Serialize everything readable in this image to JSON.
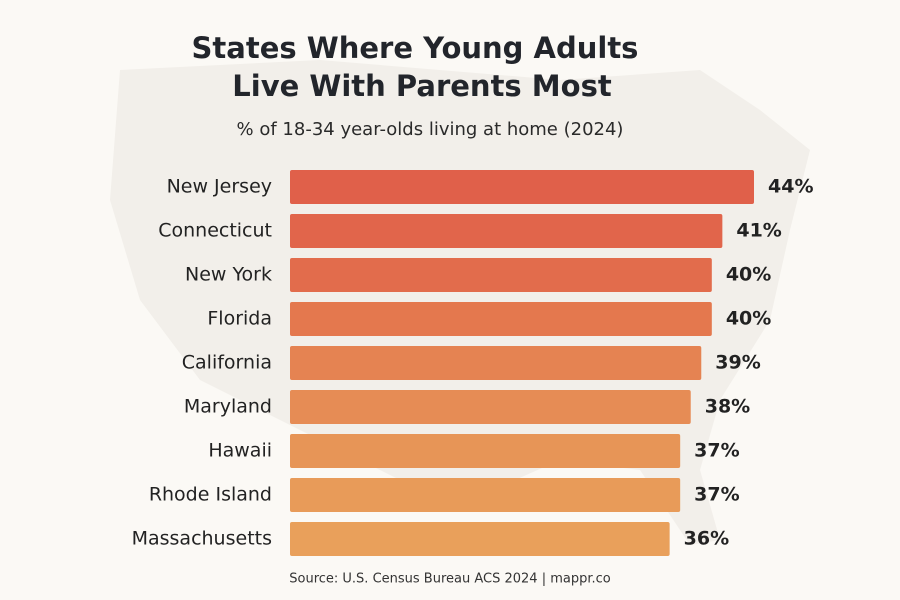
{
  "chart_data": {
    "type": "hbar",
    "title": [
      "States Where Young Adults",
      "Live With Parents Most"
    ],
    "subtitle": "% of 18-34 year-olds living at home (2024)",
    "source": "Source: U.S. Census Bureau ACS 2024 | mappr.co",
    "categories": [
      "New Jersey",
      "Connecticut",
      "New York",
      "Florida",
      "California",
      "Maryland",
      "Hawaii",
      "Rhode Island",
      "Massachusetts"
    ],
    "values": [
      44,
      41,
      40,
      40,
      39,
      38,
      37,
      37,
      36
    ],
    "value_labels": [
      "44%",
      "41%",
      "40%",
      "40%",
      "39%",
      "38%",
      "37%",
      "37%",
      "36%"
    ],
    "colors": [
      "#e0604a",
      "#e1654b",
      "#e26c4c",
      "#e4784e",
      "#e58352",
      "#e68c55",
      "#e79557",
      "#e89b59",
      "#e9a05b"
    ],
    "xlim": [
      0,
      44
    ]
  }
}
